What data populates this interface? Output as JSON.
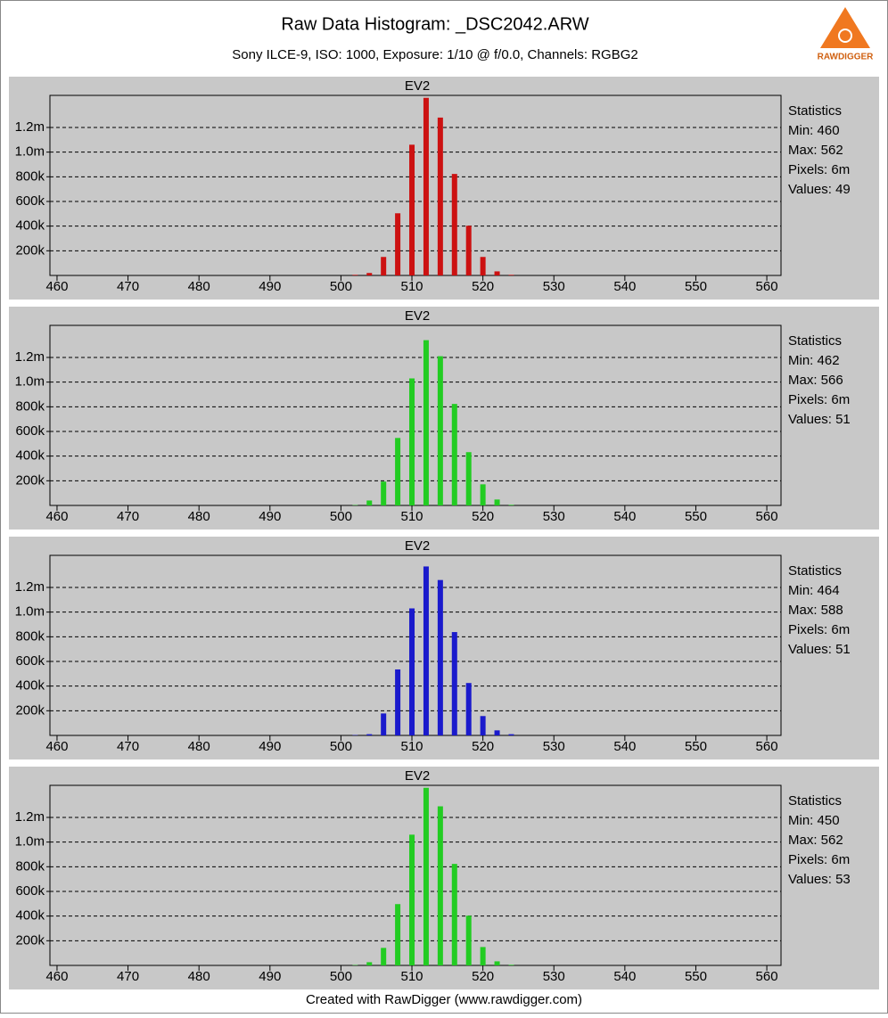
{
  "header": {
    "title": "Raw Data Histogram: _DSC2042.ARW",
    "subtitle": "Sony ILCE-9, ISO: 1000, Exposure: 1/10 @ f/0.0, Channels: RGBG2",
    "logo": "RAWDIGGER"
  },
  "footer": "Created with RawDigger (www.rawdigger.com)",
  "chart_data": [
    {
      "type": "bar",
      "title": "EV2",
      "color": "#cc1111",
      "x": [
        502,
        504,
        506,
        508,
        510,
        512,
        514,
        516,
        518,
        520,
        522,
        524
      ],
      "values": [
        5000,
        20000,
        150000,
        504000,
        1060000,
        1440000,
        1280000,
        823000,
        403000,
        150000,
        33000,
        5000
      ],
      "xlim": [
        459,
        562
      ],
      "xticks": [
        460,
        470,
        480,
        490,
        500,
        510,
        520,
        530,
        540,
        550,
        560
      ],
      "ylim": [
        0,
        1460000
      ],
      "yticks": [
        {
          "value": 200000,
          "label": "200k"
        },
        {
          "value": 400000,
          "label": "400k"
        },
        {
          "value": 600000,
          "label": "600k"
        },
        {
          "value": 800000,
          "label": "800k"
        },
        {
          "value": 1000000,
          "label": "1.0m"
        },
        {
          "value": 1200000,
          "label": "1.2m"
        }
      ],
      "grid": true,
      "stats": [
        "Statistics",
        "Min: 460",
        "Max: 562",
        "Pixels: 6m",
        "Values: 49"
      ]
    },
    {
      "type": "bar",
      "title": "EV2",
      "color": "#22cc22",
      "x": [
        502,
        504,
        506,
        508,
        510,
        512,
        514,
        516,
        518,
        520,
        522,
        524
      ],
      "values": [
        3000,
        40000,
        193000,
        547000,
        1030000,
        1340000,
        1210000,
        823000,
        432000,
        171000,
        48000,
        5000
      ],
      "xlim": [
        459,
        562
      ],
      "xticks": [
        460,
        470,
        480,
        490,
        500,
        510,
        520,
        530,
        540,
        550,
        560
      ],
      "ylim": [
        0,
        1460000
      ],
      "yticks": [
        {
          "value": 200000,
          "label": "200k"
        },
        {
          "value": 400000,
          "label": "400k"
        },
        {
          "value": 600000,
          "label": "600k"
        },
        {
          "value": 800000,
          "label": "800k"
        },
        {
          "value": 1000000,
          "label": "1.0m"
        },
        {
          "value": 1200000,
          "label": "1.2m"
        }
      ],
      "grid": true,
      "stats": [
        "Statistics",
        "Min: 462",
        "Max: 566",
        "Pixels: 6m",
        "Values: 51"
      ]
    },
    {
      "type": "bar",
      "title": "EV2",
      "color": "#1a1acc",
      "x": [
        502,
        504,
        506,
        508,
        510,
        512,
        514,
        516,
        518,
        520,
        522,
        524
      ],
      "values": [
        3000,
        10000,
        178000,
        535000,
        1030000,
        1370000,
        1260000,
        838000,
        425000,
        157000,
        41000,
        10000
      ],
      "xlim": [
        459,
        562
      ],
      "xticks": [
        460,
        470,
        480,
        490,
        500,
        510,
        520,
        530,
        540,
        550,
        560
      ],
      "ylim": [
        0,
        1460000
      ],
      "yticks": [
        {
          "value": 200000,
          "label": "200k"
        },
        {
          "value": 400000,
          "label": "400k"
        },
        {
          "value": 600000,
          "label": "600k"
        },
        {
          "value": 800000,
          "label": "800k"
        },
        {
          "value": 1000000,
          "label": "1.0m"
        },
        {
          "value": 1200000,
          "label": "1.2m"
        }
      ],
      "grid": true,
      "stats": [
        "Statistics",
        "Min: 464",
        "Max: 588",
        "Pixels: 6m",
        "Values: 51"
      ]
    },
    {
      "type": "bar",
      "title": "EV2",
      "color": "#22cc22",
      "x": [
        502,
        504,
        506,
        508,
        510,
        512,
        514,
        516,
        518,
        520,
        522,
        524
      ],
      "values": [
        3000,
        26000,
        142000,
        497000,
        1060000,
        1440000,
        1290000,
        823000,
        403000,
        149000,
        33000,
        5000
      ],
      "xlim": [
        459,
        562
      ],
      "xticks": [
        460,
        470,
        480,
        490,
        500,
        510,
        520,
        530,
        540,
        550,
        560
      ],
      "ylim": [
        0,
        1460000
      ],
      "yticks": [
        {
          "value": 200000,
          "label": "200k"
        },
        {
          "value": 400000,
          "label": "400k"
        },
        {
          "value": 600000,
          "label": "600k"
        },
        {
          "value": 800000,
          "label": "800k"
        },
        {
          "value": 1000000,
          "label": "1.0m"
        },
        {
          "value": 1200000,
          "label": "1.2m"
        }
      ],
      "grid": true,
      "stats": [
        "Statistics",
        "Min: 450",
        "Max: 562",
        "Pixels: 6m",
        "Values: 53"
      ]
    }
  ]
}
